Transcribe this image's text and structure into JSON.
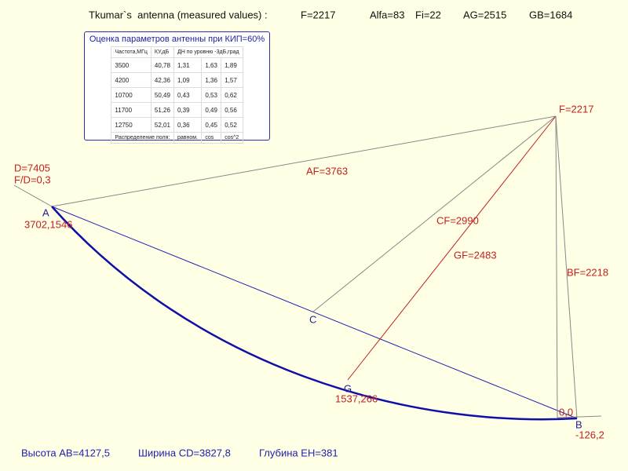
{
  "header": {
    "title": "Tkumar`s  antenna (measured values) :",
    "params": [
      "F=2217",
      "Alfa=83",
      "Fi=22",
      "AG=2515",
      "GB=1684"
    ]
  },
  "table": {
    "title": "Оценка параметров антенны при КИП=60%",
    "columns": [
      "Частота,МГц",
      "КУ,дБ",
      "ДН по уровню -3дБ,град"
    ],
    "rows": [
      [
        "3500",
        "40,78",
        "1,31",
        "1,63",
        "1,89"
      ],
      [
        "4200",
        "42,36",
        "1,09",
        "1,36",
        "1,57"
      ],
      [
        "10700",
        "50,49",
        "0,43",
        "0,53",
        "0,62"
      ],
      [
        "11700",
        "51,26",
        "0,39",
        "0,49",
        "0,56"
      ],
      [
        "12750",
        "52,01",
        "0,36",
        "0,45",
        "0,52"
      ]
    ],
    "footer": [
      "Распределение поля:",
      "равном.",
      "cos",
      "cos^2"
    ]
  },
  "labels": [
    "D=7405",
    "F/D=0,3",
    "A",
    "3702,1546",
    "F=2217",
    "AF=3763",
    "CF=2990",
    "GF=2483",
    "BF=2218",
    "C",
    "G",
    "1537,266",
    "0,0",
    "B",
    "-126,2"
  ],
  "footer": [
    "Высота AB=4127,5",
    "Ширина CD=3827,8",
    "Глубина EH=381"
  ]
}
